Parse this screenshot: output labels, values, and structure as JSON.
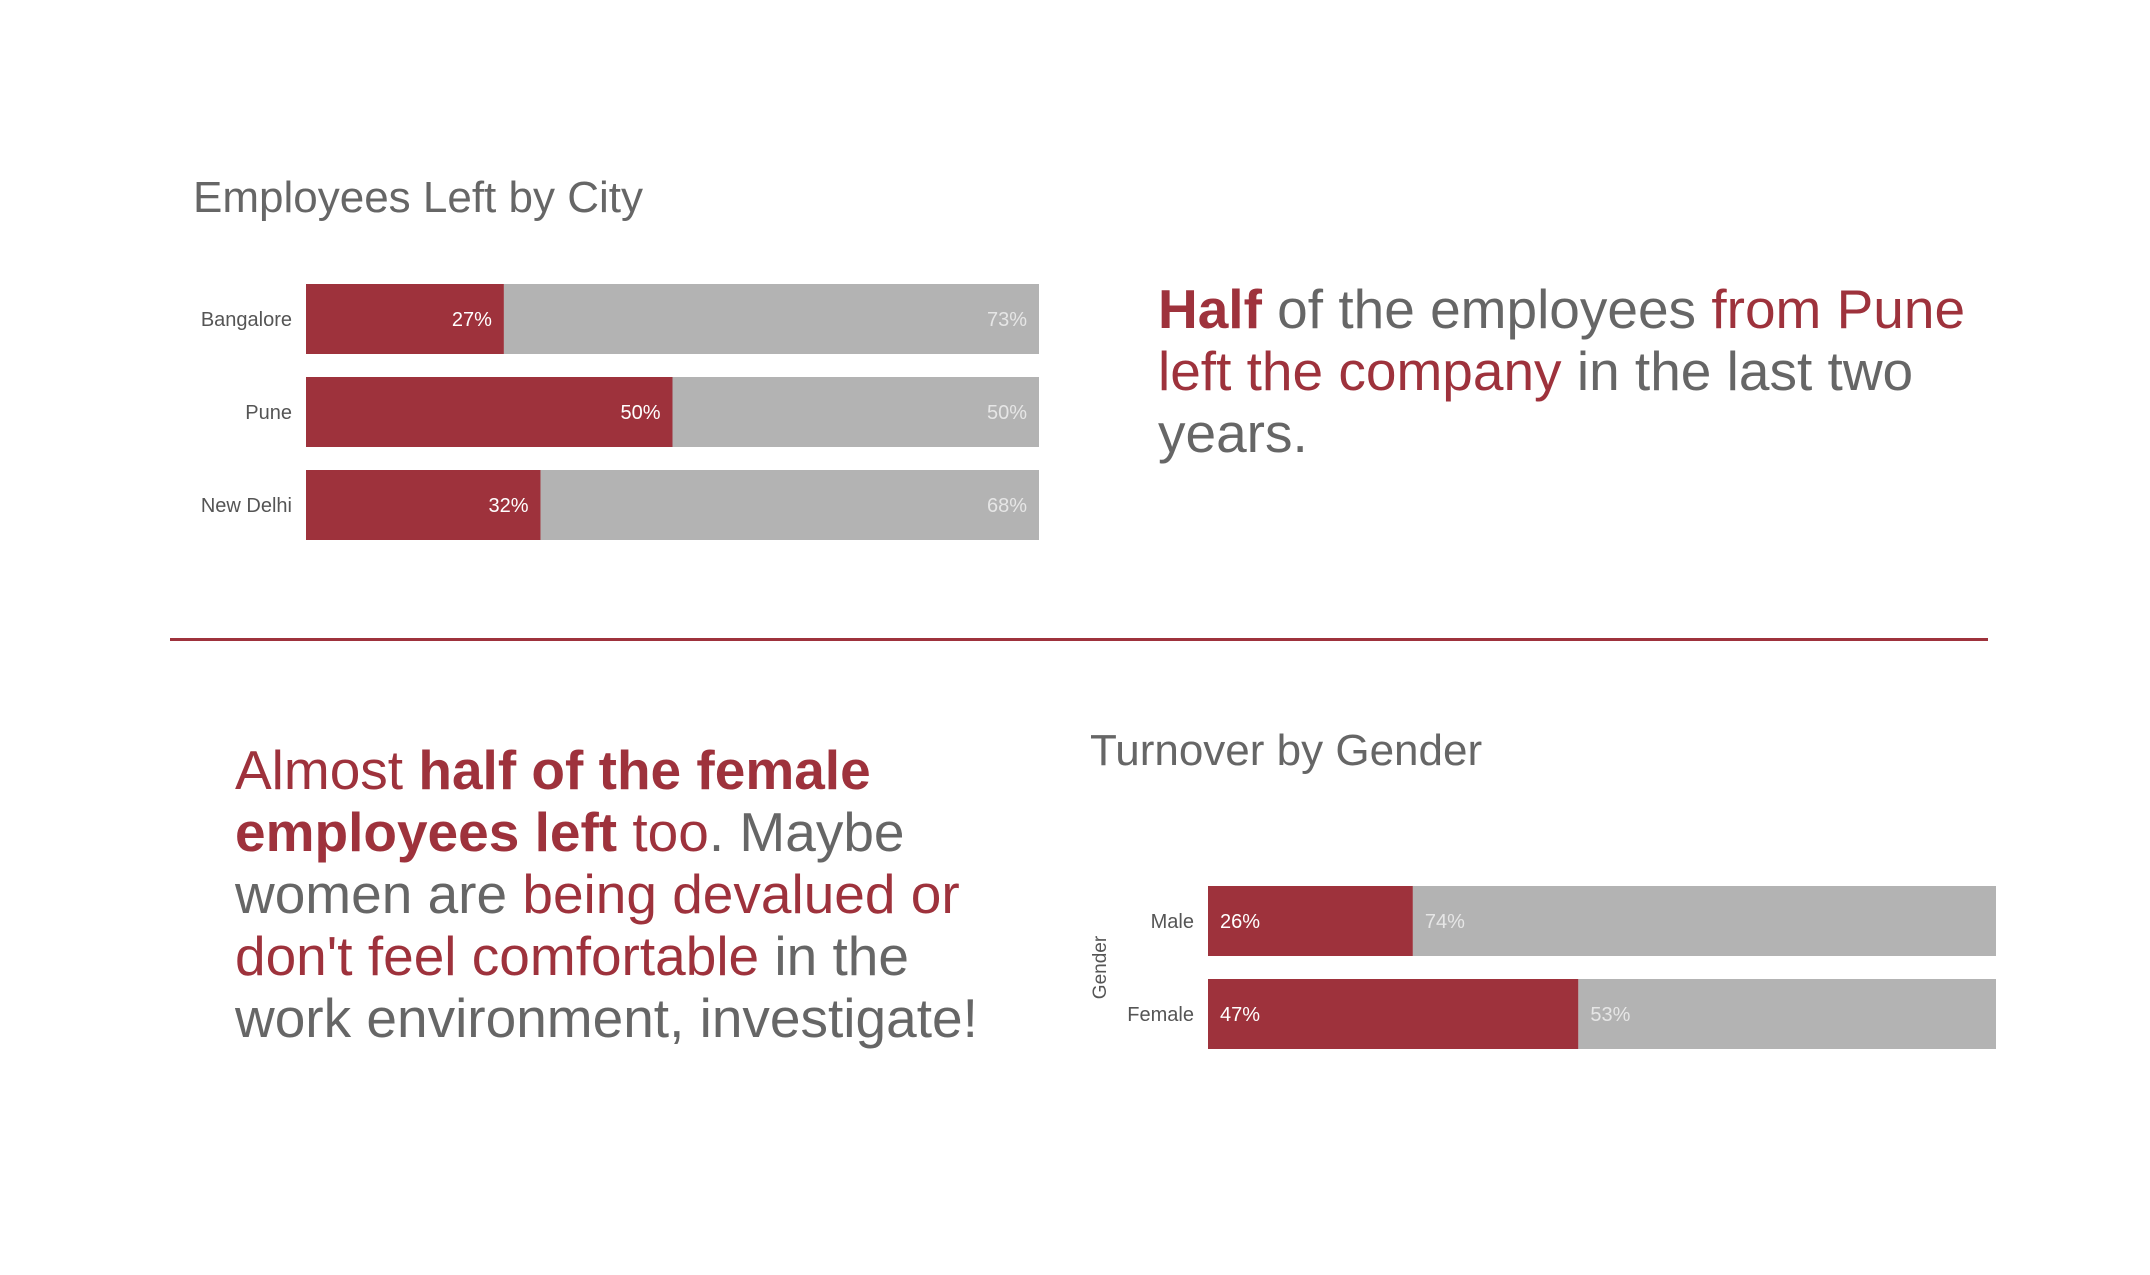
{
  "colors": {
    "accent": "#9e323c",
    "rest": "#b3b3b3",
    "text": "#666666"
  },
  "chart_data": [
    {
      "type": "bar",
      "orientation": "horizontal",
      "stacked": true,
      "title": "Employees Left by City",
      "categories": [
        "Bangalore",
        "Pune",
        "New Delhi"
      ],
      "series": [
        {
          "values": [
            27,
            50,
            32
          ],
          "labels": [
            "27%",
            "50%",
            "32%"
          ]
        },
        {
          "values": [
            73,
            50,
            68
          ],
          "labels": [
            "73%",
            "50%",
            "68%"
          ]
        }
      ],
      "xlabel": "",
      "ylabel": "",
      "xlim": [
        0,
        100
      ],
      "grid": false,
      "legend": "none"
    },
    {
      "type": "bar",
      "orientation": "horizontal",
      "stacked": true,
      "title": "Turnover by Gender",
      "categories": [
        "Male",
        "Female"
      ],
      "series": [
        {
          "values": [
            26,
            47
          ],
          "labels": [
            "26%",
            "47%"
          ]
        },
        {
          "values": [
            74,
            53
          ],
          "labels": [
            "74%",
            "53%"
          ]
        }
      ],
      "xlabel": "",
      "ylabel": "Gender",
      "xlim": [
        0,
        100
      ],
      "grid": false,
      "legend": "none"
    }
  ],
  "insight_city": [
    {
      "text": "Half",
      "style": "accent strong"
    },
    {
      "text": " of the employees ",
      "style": ""
    },
    {
      "text": "from Pune left the company",
      "style": "accent"
    },
    {
      "text": " in the last two years.",
      "style": ""
    }
  ],
  "insight_gender": [
    {
      "text": "Almost ",
      "style": "accent"
    },
    {
      "text": "half of the female employees left",
      "style": "accent strong"
    },
    {
      "text": " too",
      "style": "accent"
    },
    {
      "text": ". Maybe women are ",
      "style": ""
    },
    {
      "text": "being devalued or don't feel comfortable",
      "style": "accent"
    },
    {
      "text": " in the work environment, investigate!",
      "style": ""
    }
  ]
}
